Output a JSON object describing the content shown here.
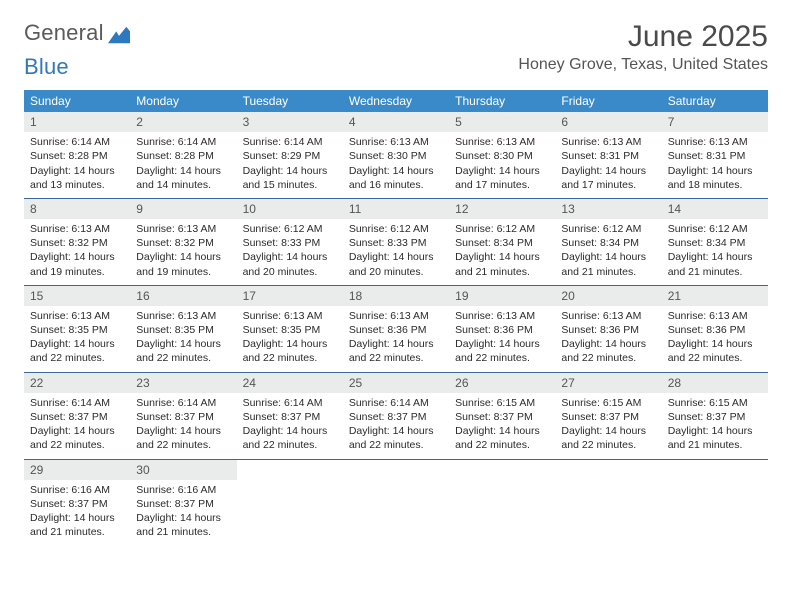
{
  "logo": {
    "word1": "General",
    "word2": "Blue"
  },
  "title": "June 2025",
  "location": "Honey Grove, Texas, United States",
  "colors": {
    "header_bg": "#3a8ac9",
    "week_border": "#3a6a9a",
    "daynum_bg": "#e9eceb",
    "logo_gray": "#5a5a5a",
    "logo_blue": "#2e79bd"
  },
  "weekdays": [
    "Sunday",
    "Monday",
    "Tuesday",
    "Wednesday",
    "Thursday",
    "Friday",
    "Saturday"
  ],
  "weeks": [
    [
      {
        "n": "1",
        "sr": "6:14 AM",
        "ss": "8:28 PM",
        "dl": "14 hours and 13 minutes."
      },
      {
        "n": "2",
        "sr": "6:14 AM",
        "ss": "8:28 PM",
        "dl": "14 hours and 14 minutes."
      },
      {
        "n": "3",
        "sr": "6:14 AM",
        "ss": "8:29 PM",
        "dl": "14 hours and 15 minutes."
      },
      {
        "n": "4",
        "sr": "6:13 AM",
        "ss": "8:30 PM",
        "dl": "14 hours and 16 minutes."
      },
      {
        "n": "5",
        "sr": "6:13 AM",
        "ss": "8:30 PM",
        "dl": "14 hours and 17 minutes."
      },
      {
        "n": "6",
        "sr": "6:13 AM",
        "ss": "8:31 PM",
        "dl": "14 hours and 17 minutes."
      },
      {
        "n": "7",
        "sr": "6:13 AM",
        "ss": "8:31 PM",
        "dl": "14 hours and 18 minutes."
      }
    ],
    [
      {
        "n": "8",
        "sr": "6:13 AM",
        "ss": "8:32 PM",
        "dl": "14 hours and 19 minutes."
      },
      {
        "n": "9",
        "sr": "6:13 AM",
        "ss": "8:32 PM",
        "dl": "14 hours and 19 minutes."
      },
      {
        "n": "10",
        "sr": "6:12 AM",
        "ss": "8:33 PM",
        "dl": "14 hours and 20 minutes."
      },
      {
        "n": "11",
        "sr": "6:12 AM",
        "ss": "8:33 PM",
        "dl": "14 hours and 20 minutes."
      },
      {
        "n": "12",
        "sr": "6:12 AM",
        "ss": "8:34 PM",
        "dl": "14 hours and 21 minutes."
      },
      {
        "n": "13",
        "sr": "6:12 AM",
        "ss": "8:34 PM",
        "dl": "14 hours and 21 minutes."
      },
      {
        "n": "14",
        "sr": "6:12 AM",
        "ss": "8:34 PM",
        "dl": "14 hours and 21 minutes."
      }
    ],
    [
      {
        "n": "15",
        "sr": "6:13 AM",
        "ss": "8:35 PM",
        "dl": "14 hours and 22 minutes."
      },
      {
        "n": "16",
        "sr": "6:13 AM",
        "ss": "8:35 PM",
        "dl": "14 hours and 22 minutes."
      },
      {
        "n": "17",
        "sr": "6:13 AM",
        "ss": "8:35 PM",
        "dl": "14 hours and 22 minutes."
      },
      {
        "n": "18",
        "sr": "6:13 AM",
        "ss": "8:36 PM",
        "dl": "14 hours and 22 minutes."
      },
      {
        "n": "19",
        "sr": "6:13 AM",
        "ss": "8:36 PM",
        "dl": "14 hours and 22 minutes."
      },
      {
        "n": "20",
        "sr": "6:13 AM",
        "ss": "8:36 PM",
        "dl": "14 hours and 22 minutes."
      },
      {
        "n": "21",
        "sr": "6:13 AM",
        "ss": "8:36 PM",
        "dl": "14 hours and 22 minutes."
      }
    ],
    [
      {
        "n": "22",
        "sr": "6:14 AM",
        "ss": "8:37 PM",
        "dl": "14 hours and 22 minutes."
      },
      {
        "n": "23",
        "sr": "6:14 AM",
        "ss": "8:37 PM",
        "dl": "14 hours and 22 minutes."
      },
      {
        "n": "24",
        "sr": "6:14 AM",
        "ss": "8:37 PM",
        "dl": "14 hours and 22 minutes."
      },
      {
        "n": "25",
        "sr": "6:14 AM",
        "ss": "8:37 PM",
        "dl": "14 hours and 22 minutes."
      },
      {
        "n": "26",
        "sr": "6:15 AM",
        "ss": "8:37 PM",
        "dl": "14 hours and 22 minutes."
      },
      {
        "n": "27",
        "sr": "6:15 AM",
        "ss": "8:37 PM",
        "dl": "14 hours and 22 minutes."
      },
      {
        "n": "28",
        "sr": "6:15 AM",
        "ss": "8:37 PM",
        "dl": "14 hours and 21 minutes."
      }
    ],
    [
      {
        "n": "29",
        "sr": "6:16 AM",
        "ss": "8:37 PM",
        "dl": "14 hours and 21 minutes."
      },
      {
        "n": "30",
        "sr": "6:16 AM",
        "ss": "8:37 PM",
        "dl": "14 hours and 21 minutes."
      },
      null,
      null,
      null,
      null,
      null
    ]
  ],
  "labels": {
    "sunrise": "Sunrise: ",
    "sunset": "Sunset: ",
    "daylight": "Daylight: "
  }
}
